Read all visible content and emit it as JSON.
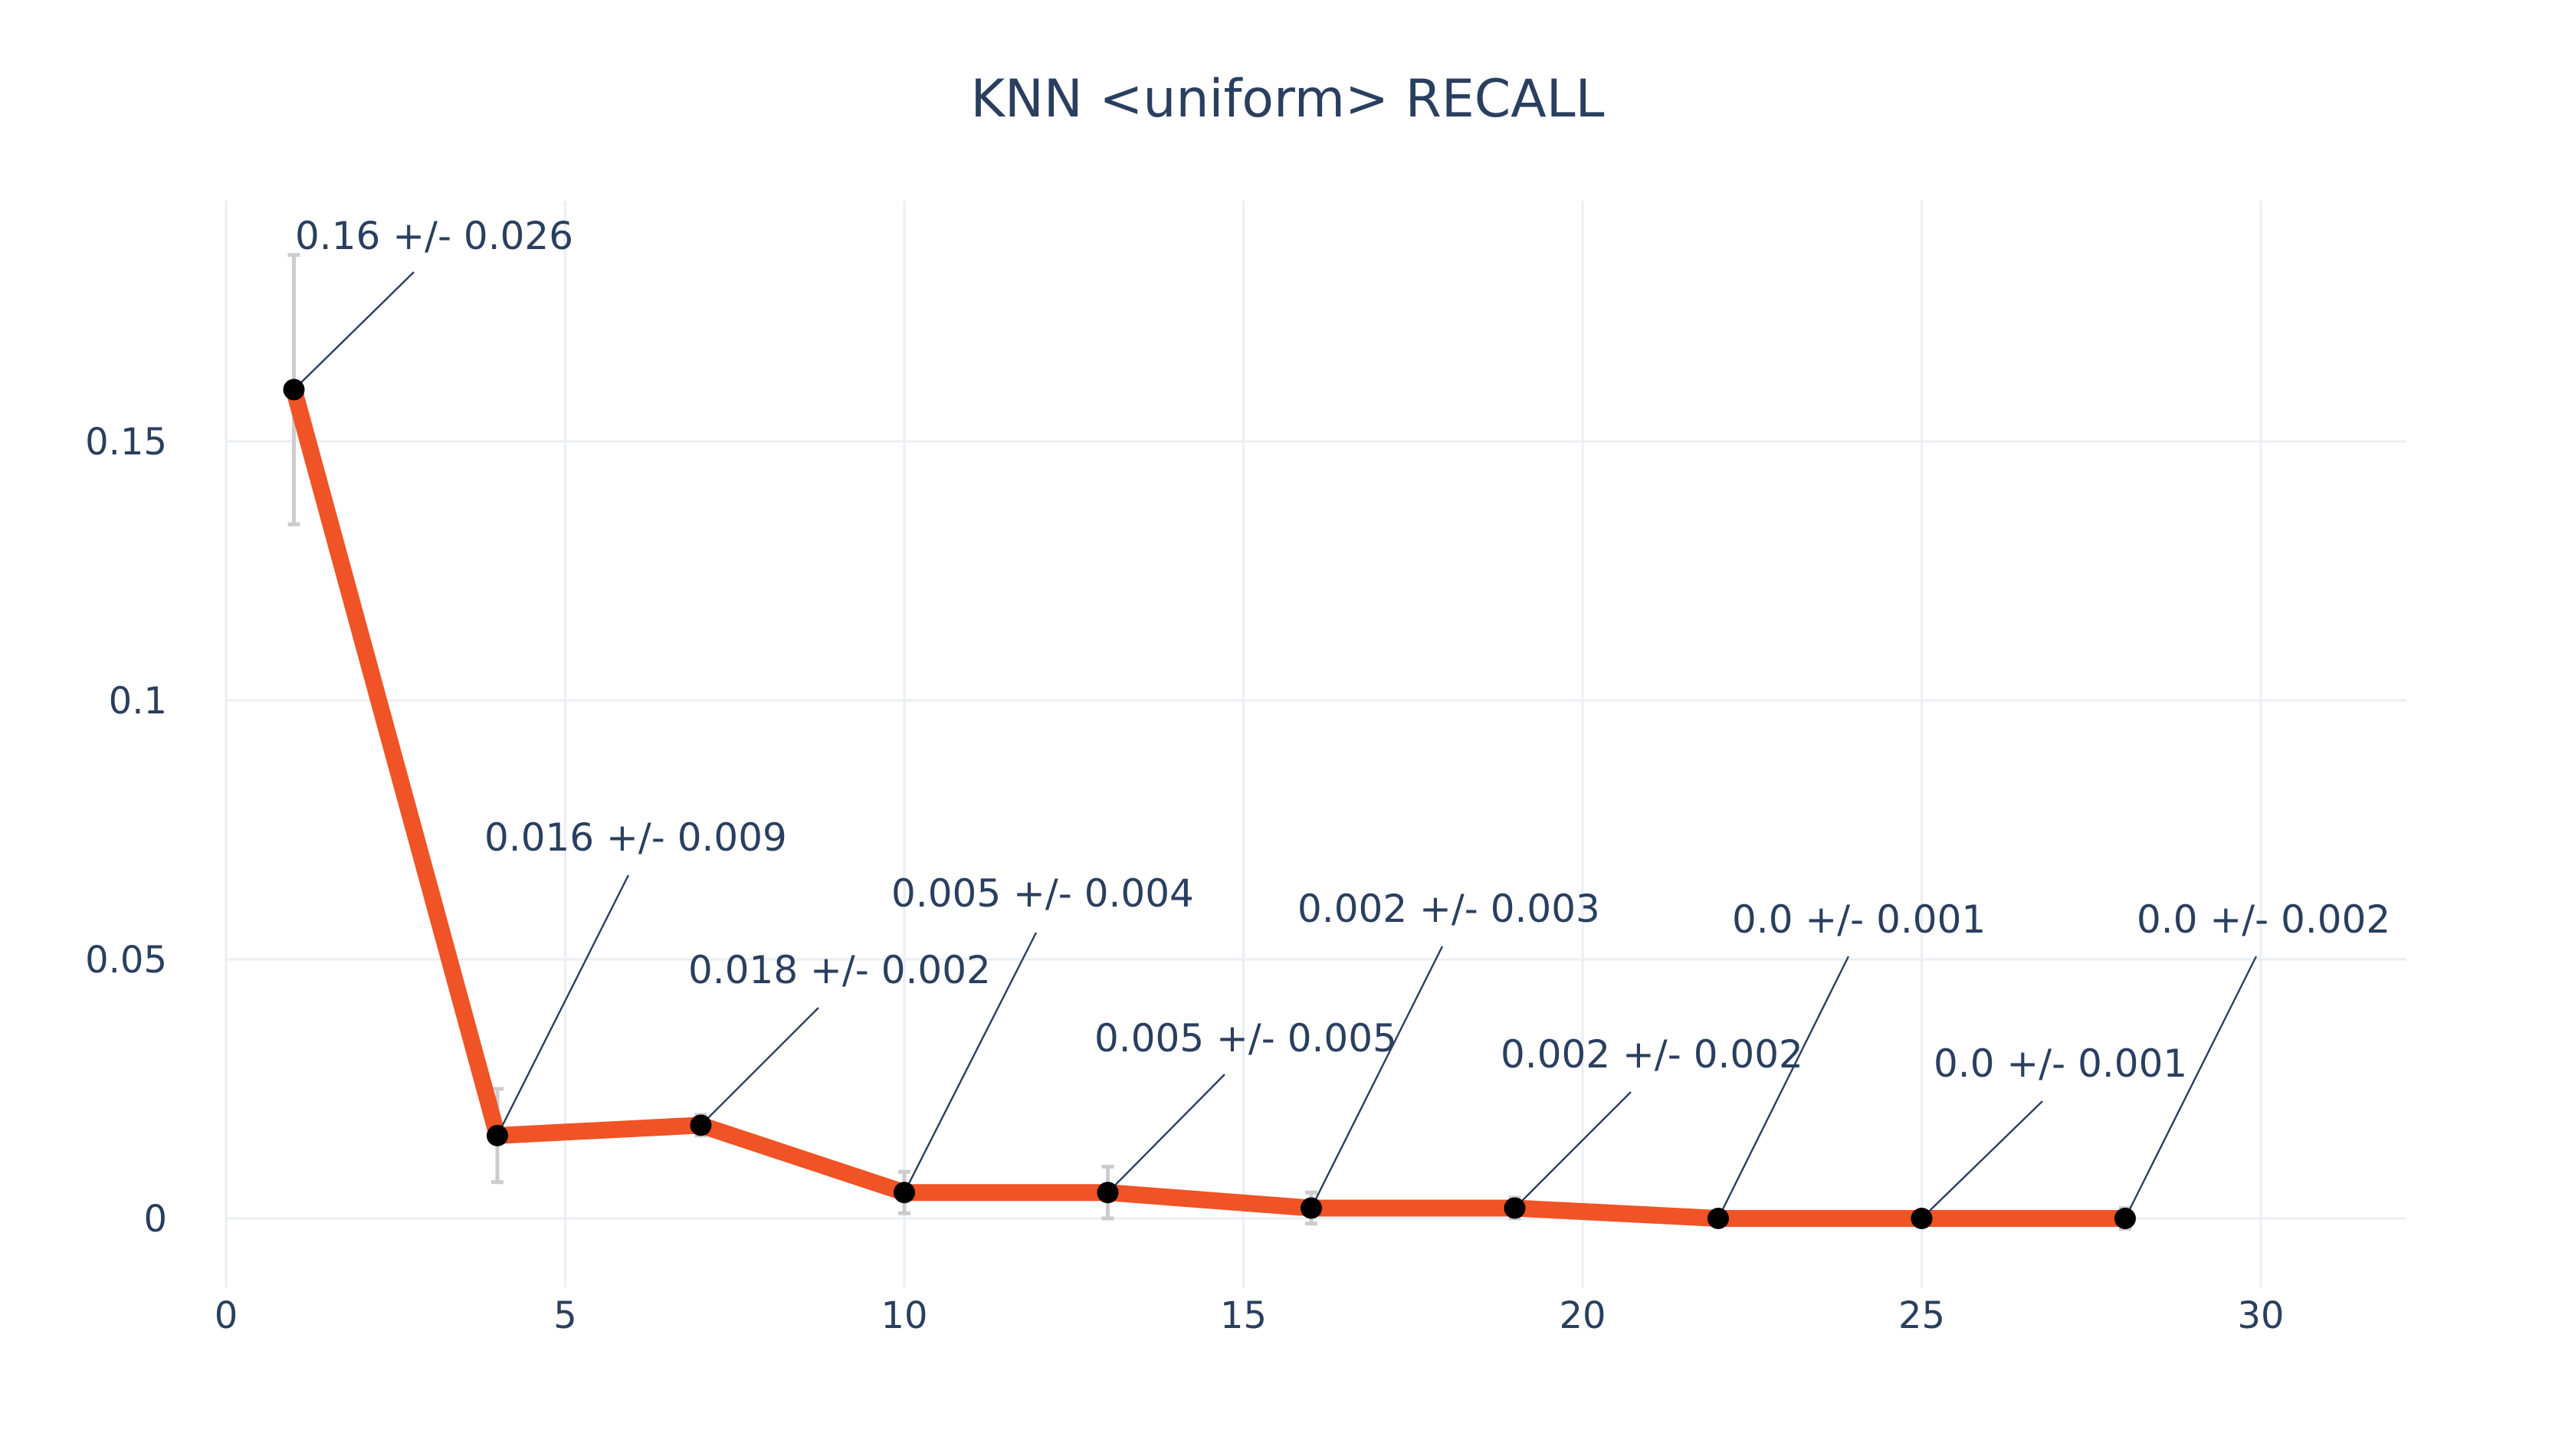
{
  "chart_data": {
    "type": "line",
    "title": "KNN <uniform> RECALL",
    "xlabel": "",
    "ylabel": "",
    "xlim": [
      0,
      32
    ],
    "ylim": [
      -0.012,
      0.19
    ],
    "x_ticks": [
      0,
      5,
      10,
      15,
      20,
      25,
      30
    ],
    "x_tick_labels": [
      "0",
      "5",
      "10",
      "15",
      "20",
      "25",
      "30"
    ],
    "y_ticks": [
      0,
      0.05,
      0.1,
      0.15
    ],
    "y_tick_labels": [
      "0",
      "0.05",
      "0.1",
      "0.15"
    ],
    "grid": true,
    "legend": "none",
    "line_color": "#ef5326",
    "marker_color": "#000000",
    "error_bar_color": "#cccccc",
    "series": [
      {
        "x": [
          1,
          4,
          7,
          10,
          13,
          16,
          19,
          22,
          25,
          28
        ],
        "y": [
          0.16,
          0.016,
          0.018,
          0.005,
          0.005,
          0.002,
          0.002,
          0.0,
          0.0,
          0.0
        ],
        "error": [
          0.026,
          0.009,
          0.002,
          0.004,
          0.005,
          0.003,
          0.002,
          0.001,
          0.001,
          0.002
        ],
        "labels": [
          "0.16 +/- 0.026",
          "0.016 +/- 0.009",
          "0.018 +/- 0.002",
          "0.005 +/- 0.004",
          "0.005 +/- 0.005",
          "0.002 +/- 0.003",
          "0.002 +/- 0.002",
          "0.0 +/- 0.001",
          "0.0 +/- 0.001",
          "0.0 +/- 0.002"
        ]
      }
    ]
  }
}
